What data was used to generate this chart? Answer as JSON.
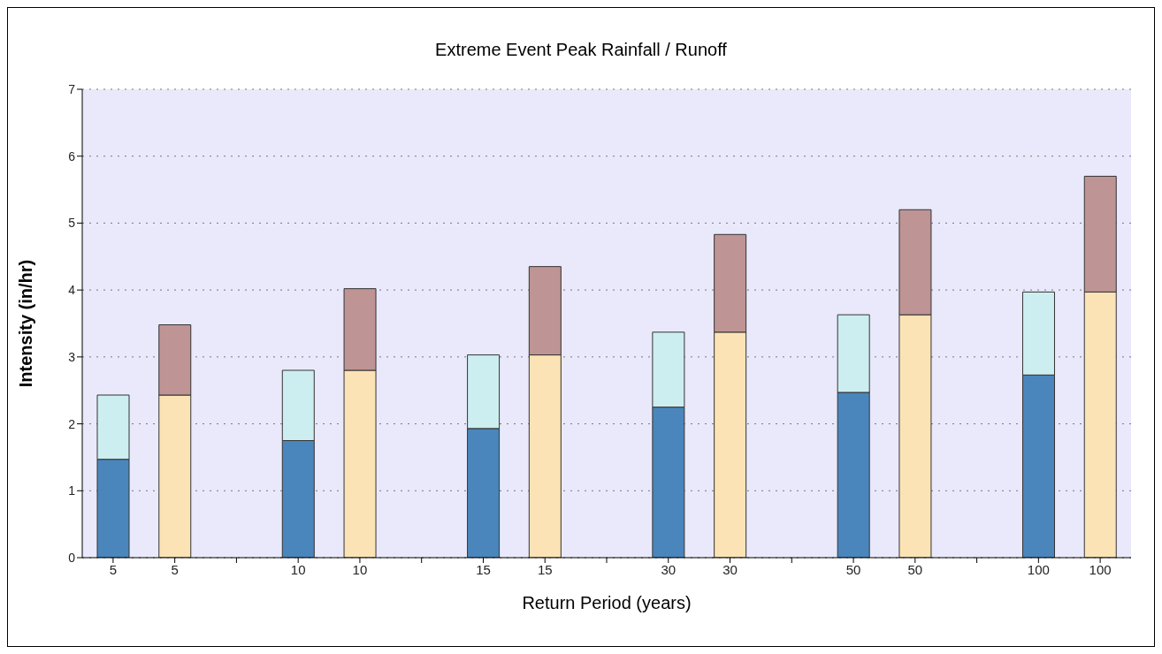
{
  "chart_data": {
    "type": "bar",
    "title": "Extreme Event Peak Rainfall / Runoff",
    "xlabel": "Return Period (years)",
    "ylabel": "Intensity (in/hr)",
    "categories": [
      "5",
      "5",
      null,
      "10",
      "10",
      null,
      "15",
      "15",
      null,
      "30",
      "30",
      null,
      "50",
      "50",
      null,
      "100",
      "100"
    ],
    "stacked": true,
    "grid": "y",
    "ylim": [
      0,
      7
    ],
    "yticks": [
      0,
      1,
      2,
      3,
      4,
      5,
      6,
      7
    ],
    "series": [
      {
        "color": "#4a86bb",
        "values": [
          1.47,
          null,
          null,
          1.75,
          null,
          null,
          1.93,
          null,
          null,
          2.25,
          null,
          null,
          2.47,
          null,
          null,
          2.73,
          null
        ]
      },
      {
        "color": "#cdeef0",
        "values": [
          0.96,
          null,
          null,
          1.05,
          null,
          null,
          1.1,
          null,
          null,
          1.12,
          null,
          null,
          1.16,
          null,
          null,
          1.24,
          null
        ]
      },
      {
        "color": "#fbe3b6",
        "values": [
          null,
          2.43,
          null,
          null,
          2.8,
          null,
          null,
          3.03,
          null,
          null,
          3.37,
          null,
          null,
          3.63,
          null,
          null,
          3.97
        ]
      },
      {
        "color": "#bf9494",
        "values": [
          null,
          1.05,
          null,
          null,
          1.22,
          null,
          null,
          1.32,
          null,
          null,
          1.46,
          null,
          null,
          1.57,
          null,
          null,
          1.73
        ]
      }
    ]
  }
}
